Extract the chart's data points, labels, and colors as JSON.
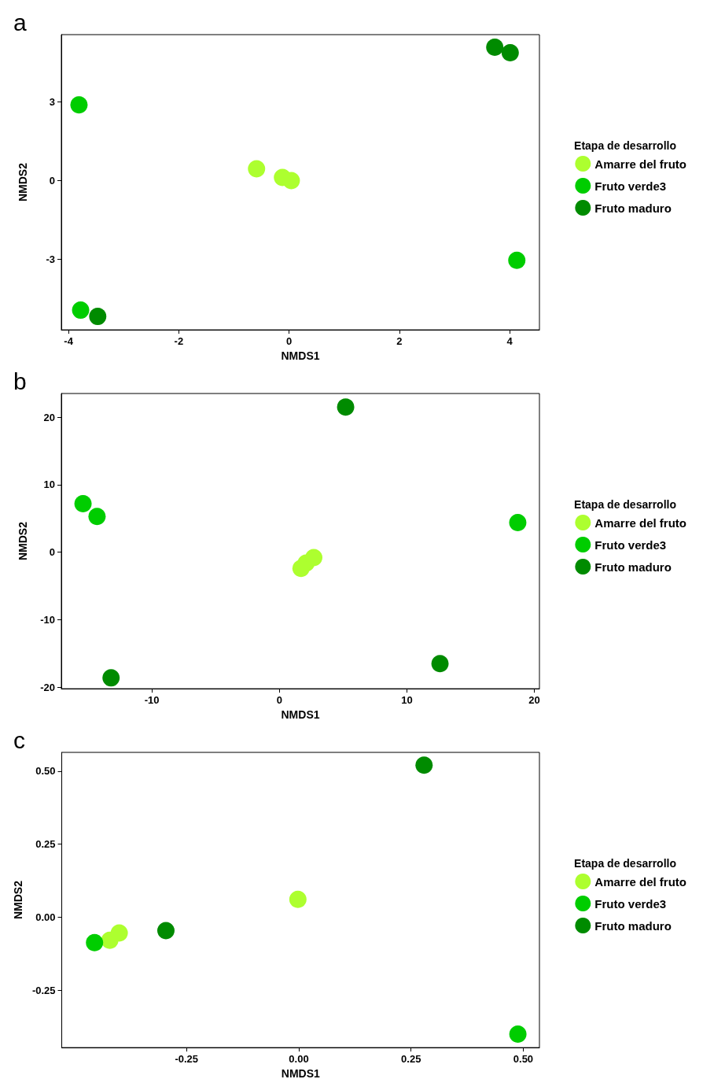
{
  "chart_data": [
    {
      "type": "scatter",
      "title": "a",
      "xlabel": "NMDS1",
      "ylabel": "NMDS2",
      "legend_title": "Etapa de desarrollo",
      "legend": "right",
      "grid": false,
      "marker": "circle",
      "xlim": [
        -4.13,
        4.54
      ],
      "xticks": [
        -4,
        -2,
        0,
        2,
        4
      ],
      "ylim": [
        -5.69,
        5.57
      ],
      "yticks": [
        -3,
        0,
        3
      ],
      "series": [
        {
          "name": "Amarre del fruto",
          "color": "#adff2f",
          "x": [
            -0.59,
            -0.12,
            0.04
          ],
          "values": [
            0.45,
            0.12,
            0
          ]
        },
        {
          "name": "Fruto verde3",
          "color": "#00cd00",
          "x": [
            -3.81,
            -3.78,
            4.13
          ],
          "values": [
            2.89,
            -4.94,
            -3.04
          ]
        },
        {
          "name": "Fruto maduro",
          "color": "#008b00",
          "x": [
            3.73,
            4.01,
            -3.47
          ],
          "values": [
            5.09,
            4.88,
            -5.18
          ]
        }
      ]
    },
    {
      "type": "scatter",
      "title": "b",
      "xlabel": "NMDS1",
      "ylabel": "NMDS2",
      "legend_title": "Etapa de desarrollo",
      "legend": "right",
      "grid": false,
      "marker": "circle",
      "xlim": [
        -17.1,
        20.4
      ],
      "xticks": [
        -10,
        0,
        10,
        20
      ],
      "ylim": [
        -20.2,
        23.5
      ],
      "yticks": [
        -20,
        -10,
        0,
        10,
        20
      ],
      "series": [
        {
          "name": "Amarre del fruto",
          "color": "#adff2f",
          "x": [
            1.7,
            2.1,
            2.7
          ],
          "values": [
            -2.4,
            -1.6,
            -0.8
          ]
        },
        {
          "name": "Fruto verde3",
          "color": "#00cd00",
          "x": [
            -15.4,
            -14.3,
            18.7
          ],
          "values": [
            7.2,
            5.3,
            4.4
          ]
        },
        {
          "name": "Fruto maduro",
          "color": "#008b00",
          "x": [
            5.2,
            12.6,
            -13.2
          ],
          "values": [
            21.5,
            -16.5,
            -18.6
          ]
        }
      ]
    },
    {
      "type": "scatter",
      "title": "c",
      "xlabel": "NMDS1",
      "ylabel": "NMDS2",
      "legend_title": "Etapa de desarrollo",
      "legend": "right",
      "grid": false,
      "marker": "circle",
      "xlim": [
        -0.528,
        0.536
      ],
      "xticks": [
        {
          "value": -0.25,
          "label": "-0.25"
        },
        {
          "value": 0,
          "label": "0.00"
        },
        {
          "value": 0.25,
          "label": "0.25"
        },
        {
          "value": 0.5,
          "label": "0.50"
        }
      ],
      "ylim": [
        -0.446,
        0.564
      ],
      "yticks": [
        {
          "value": -0.25,
          "label": "-0.25"
        },
        {
          "value": 0,
          "label": "0.00"
        },
        {
          "value": 0.25,
          "label": "0.25"
        },
        {
          "value": 0.5,
          "label": "0.50"
        }
      ],
      "series": [
        {
          "name": "Amarre del fruto",
          "color": "#adff2f",
          "x": [
            -0.002,
            -0.421,
            -0.4
          ],
          "values": [
            0.061,
            -0.079,
            -0.054
          ]
        },
        {
          "name": "Fruto verde3",
          "color": "#00cd00",
          "x": [
            -0.455,
            0.488
          ],
          "values": [
            -0.087,
            -0.4
          ]
        },
        {
          "name": "Fruto maduro",
          "color": "#008b00",
          "x": [
            0.279,
            -0.296
          ],
          "values": [
            0.52,
            -0.046
          ]
        }
      ]
    }
  ]
}
